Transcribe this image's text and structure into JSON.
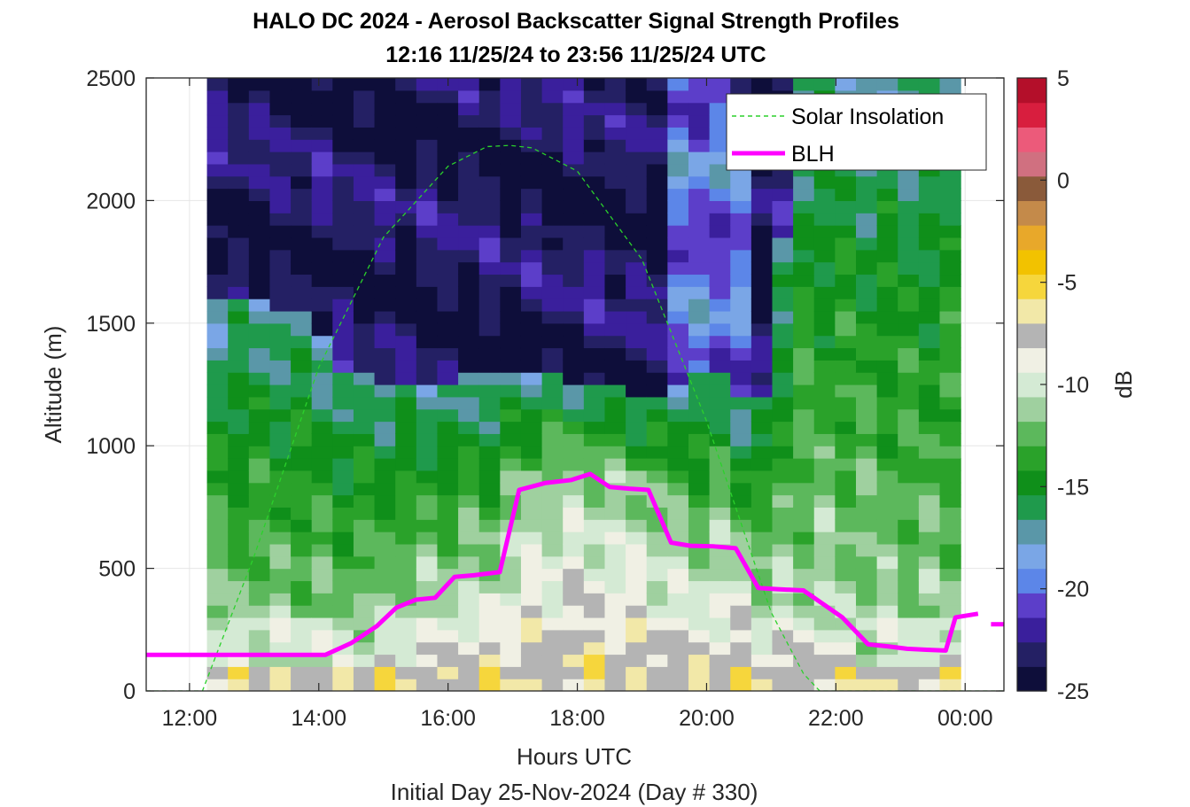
{
  "chart_data": {
    "type": "heatmap",
    "title": "HALO DC 2024 - Aerosol Backscatter Signal Strength Profiles",
    "subtitle": "12:16 11/25/24 to 23:56 11/25/24  UTC",
    "xlabel": "Hours UTC",
    "xlabel2": "Initial Day 25-Nov-2024 (Day # 330)",
    "ylabel": "Altitude (m)",
    "colorbar_label": "dB",
    "xlim": [
      11.33,
      24.6
    ],
    "ylim": [
      0,
      2500
    ],
    "xticks": [
      12,
      14,
      16,
      18,
      20,
      22,
      24
    ],
    "xtick_labels": [
      "12:00",
      "14:00",
      "16:00",
      "18:00",
      "20:00",
      "22:00",
      "00:00"
    ],
    "yticks": [
      0,
      500,
      1000,
      1500,
      2000,
      2500
    ],
    "ytick_labels": [
      "0",
      "500",
      "1000",
      "1500",
      "2000",
      "2500"
    ],
    "clim": [
      -25,
      5
    ],
    "cticks": [
      5,
      0,
      -5,
      -10,
      -15,
      -20,
      -25
    ],
    "ctick_labels": [
      "5",
      "0",
      "-5",
      "-10",
      "-15",
      "-20",
      "-25"
    ],
    "grid": true,
    "legend_position": "top-right",
    "data_x_range": [
      12.27,
      23.93
    ],
    "series": [
      {
        "name": "Solar Insolation",
        "style": "dashed",
        "color": "#2bd12b",
        "x": [
          11.33,
          12.05,
          12.2,
          13.0,
          14.0,
          15.0,
          16.0,
          16.6,
          16.95,
          17.3,
          18.0,
          19.0,
          20.0,
          21.0,
          21.5,
          21.75,
          21.9,
          24.6
        ],
        "y": [
          0,
          0,
          0,
          550,
          1320,
          1850,
          2140,
          2220,
          2225,
          2215,
          2120,
          1760,
          1100,
          320,
          70,
          0,
          0,
          0
        ]
      },
      {
        "name": "BLH",
        "style": "solid",
        "color": "#ff00ff",
        "x": [
          11.33,
          14.1,
          14.5,
          14.9,
          15.2,
          15.5,
          15.8,
          16.1,
          16.4,
          16.8,
          17.1,
          17.5,
          17.9,
          18.2,
          18.5,
          18.8,
          19.1,
          19.45,
          19.75,
          20.1,
          20.45,
          20.8,
          21.1,
          21.5,
          22.1,
          22.5,
          22.8,
          23.1,
          23.4,
          23.7,
          23.85,
          24.2
        ],
        "y": [
          147,
          147,
          195,
          265,
          340,
          372,
          380,
          465,
          472,
          485,
          820,
          848,
          860,
          885,
          832,
          825,
          820,
          605,
          592,
          590,
          582,
          420,
          415,
          410,
          300,
          190,
          182,
          172,
          168,
          165,
          300,
          315
        ],
        "extra_segment": {
          "x": [
            24.4,
            24.6
          ],
          "y": [
            272,
            272
          ]
        }
      }
    ]
  },
  "colors": {
    "colormap": [
      "#0e0e3a",
      "#242064",
      "#3a1f9c",
      "#5c3ec9",
      "#5c86e8",
      "#7aa6e6",
      "#5a97a8",
      "#1f9a4c",
      "#0f8f1a",
      "#2aa22a",
      "#5cb85c",
      "#9fd09f",
      "#d4ead4",
      "#f0f0e4",
      "#b4b4b4",
      "#f2e8a8",
      "#f6d63c",
      "#f2c200",
      "#e8a82a",
      "#c48a4a",
      "#8a5a3a",
      "#d07080",
      "#ec5a7a",
      "#d81e3e",
      "#b40f2a"
    ],
    "grid": "#e6e6e6",
    "axis": "#262626"
  }
}
